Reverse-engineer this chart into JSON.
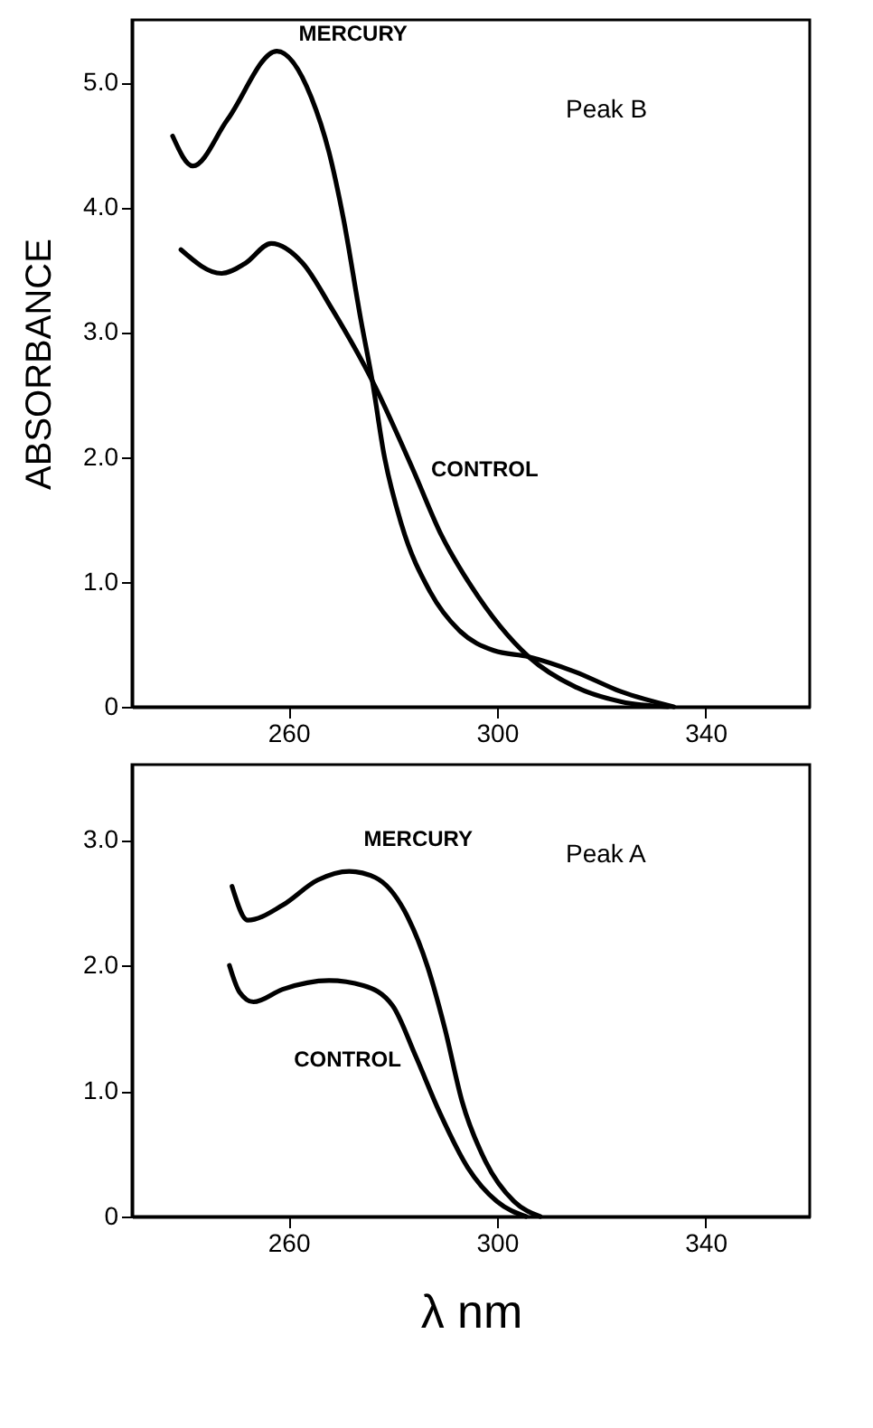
{
  "chart_data": [
    {
      "type": "line",
      "ylabel": "ABSORBANCE",
      "annotations": [
        "Peak B"
      ],
      "xlim": [
        230,
        360
      ],
      "xticks": [
        260,
        300,
        340
      ],
      "ylim": [
        0,
        5.5
      ],
      "yticks": [
        {
          "value": 0,
          "label": "0"
        },
        {
          "value": 1,
          "label": "1.0"
        },
        {
          "value": 2,
          "label": "2.0"
        },
        {
          "value": 3,
          "label": "3.0"
        },
        {
          "value": 4,
          "label": "4.0"
        },
        {
          "value": 5,
          "label": "5.0"
        }
      ],
      "grid": false,
      "legend": false,
      "marker": "none",
      "line_style": "solid",
      "series": [
        {
          "name": "MERCURY",
          "color": "#000000",
          "x": [
            237.8,
            241.7,
            248.3,
            257.8,
            264.4,
            267.8,
            270.6,
            273.9,
            276.1,
            278.3,
            281.7,
            287.2,
            292.8,
            299.4,
            306.1,
            315,
            323.9,
            333.9
          ],
          "values": [
            4.57,
            4.33,
            4.7,
            5.25,
            4.88,
            4.44,
            3.9,
            3.1,
            2.61,
            2.03,
            1.46,
            0.92,
            0.61,
            0.45,
            0.4,
            0.28,
            0.12,
            0
          ]
        },
        {
          "name": "CONTROL",
          "color": "#000000",
          "x": [
            239.4,
            247.2,
            251.7,
            256.7,
            262.8,
            268.3,
            276.1,
            283.9,
            289.4,
            295,
            306.1,
            315,
            323.9,
            332.8
          ],
          "values": [
            3.66,
            3.47,
            3.55,
            3.71,
            3.55,
            3.19,
            2.61,
            1.9,
            1.37,
            0.97,
            0.4,
            0.16,
            0.04,
            0
          ]
        }
      ]
    },
    {
      "type": "line",
      "xlabel": "λ nm",
      "annotations": [
        "Peak A"
      ],
      "xlim": [
        230,
        360
      ],
      "xticks": [
        260,
        300,
        340
      ],
      "ylim": [
        0,
        3.6
      ],
      "yticks": [
        {
          "value": 0,
          "label": "0"
        },
        {
          "value": 1,
          "label": "1.0"
        },
        {
          "value": 2,
          "label": "2.0"
        },
        {
          "value": 3,
          "label": "3.0"
        }
      ],
      "grid": false,
      "legend": false,
      "marker": "none",
      "line_style": "solid",
      "series": [
        {
          "name": "MERCURY",
          "color": "#000000",
          "x": [
            249.2,
            252.2,
            258.9,
            265.6,
            271.7,
            276.7,
            282.2,
            286.7,
            290,
            293.3,
            297.8,
            303.3,
            308.3
          ],
          "values": [
            2.63,
            2.36,
            2.48,
            2.68,
            2.75,
            2.7,
            2.44,
            1.99,
            1.5,
            0.92,
            0.44,
            0.12,
            0
          ]
        },
        {
          "name": "CONTROL",
          "color": "#000000",
          "x": [
            248.7,
            250.6,
            253.3,
            258.9,
            267.8,
            274.4,
            280,
            284.4,
            288.9,
            294.4,
            300,
            305.6
          ],
          "values": [
            2.0,
            1.79,
            1.71,
            1.81,
            1.88,
            1.84,
            1.68,
            1.28,
            0.84,
            0.39,
            0.12,
            0
          ]
        }
      ]
    }
  ]
}
